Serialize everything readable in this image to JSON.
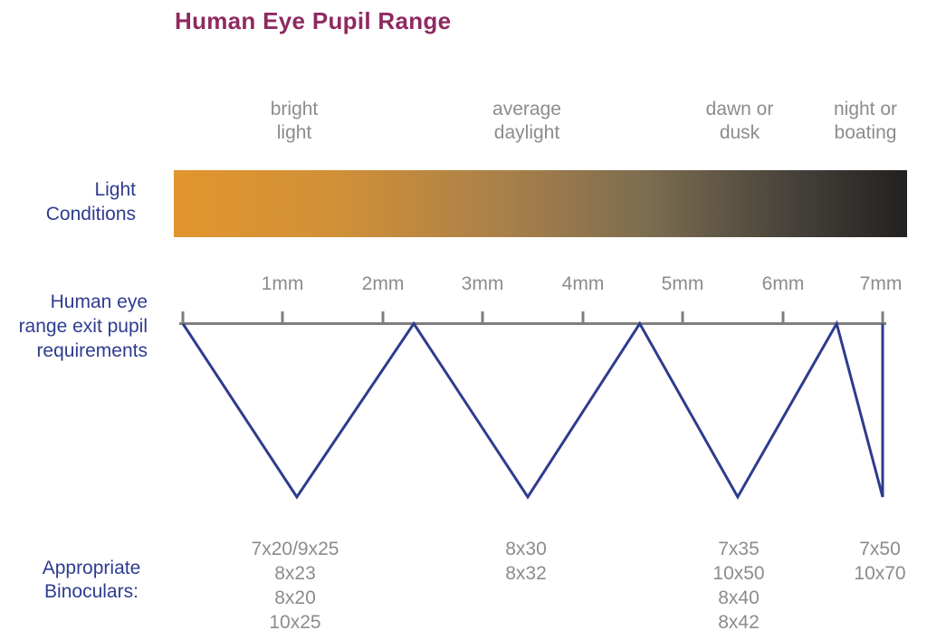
{
  "title": "Human Eye Pupil Range",
  "colors": {
    "title": "#8e2a60",
    "blue_label": "#2e3c8e",
    "gray_text": "#8c8c8c",
    "axis_gray": "#7f7f7f",
    "line_blue": "#2e3c8c",
    "gradient_start": "#e2952d",
    "gradient_mid": "#7b6c50",
    "gradient_end": "#232120"
  },
  "labels": {
    "light_conditions": {
      "line1": "Light",
      "line2": "Conditions"
    },
    "exit_pupil": {
      "line1": "Human eye",
      "line2": "range exit pupil",
      "line3": "requirements"
    },
    "binoculars": {
      "line1": "Appropriate",
      "line2": "Binoculars:"
    }
  },
  "light_conditions": {
    "categories": [
      {
        "line1": "bright",
        "line2": "light"
      },
      {
        "line1": "average",
        "line2": "daylight"
      },
      {
        "line1": "dawn or",
        "line2": "dusk"
      },
      {
        "line1": "night or",
        "line2": "boating"
      }
    ]
  },
  "axis": {
    "unit": "mm",
    "ticks": [
      "1mm",
      "2mm",
      "3mm",
      "4mm",
      "5mm",
      "6mm",
      "7mm"
    ]
  },
  "line": {
    "vertices": [
      {
        "mm": 0.0,
        "level": "top"
      },
      {
        "mm": 1.14,
        "level": "bottom"
      },
      {
        "mm": 2.31,
        "level": "top"
      },
      {
        "mm": 3.45,
        "level": "bottom"
      },
      {
        "mm": 4.57,
        "level": "top"
      },
      {
        "mm": 5.55,
        "level": "bottom"
      },
      {
        "mm": 6.54,
        "level": "top"
      },
      {
        "mm": 7.0,
        "level": "bottom"
      },
      {
        "mm": 7.0,
        "level": "top"
      }
    ]
  },
  "binoculars": {
    "groups": [
      {
        "items": [
          "7x20/9x25",
          "8x23",
          "8x20",
          "10x25"
        ]
      },
      {
        "items": [
          "8x30",
          "8x32"
        ]
      },
      {
        "items": [
          "7x35",
          "10x50",
          "8x40",
          "8x42"
        ]
      },
      {
        "items": [
          "7x50",
          "10x70"
        ]
      }
    ]
  }
}
